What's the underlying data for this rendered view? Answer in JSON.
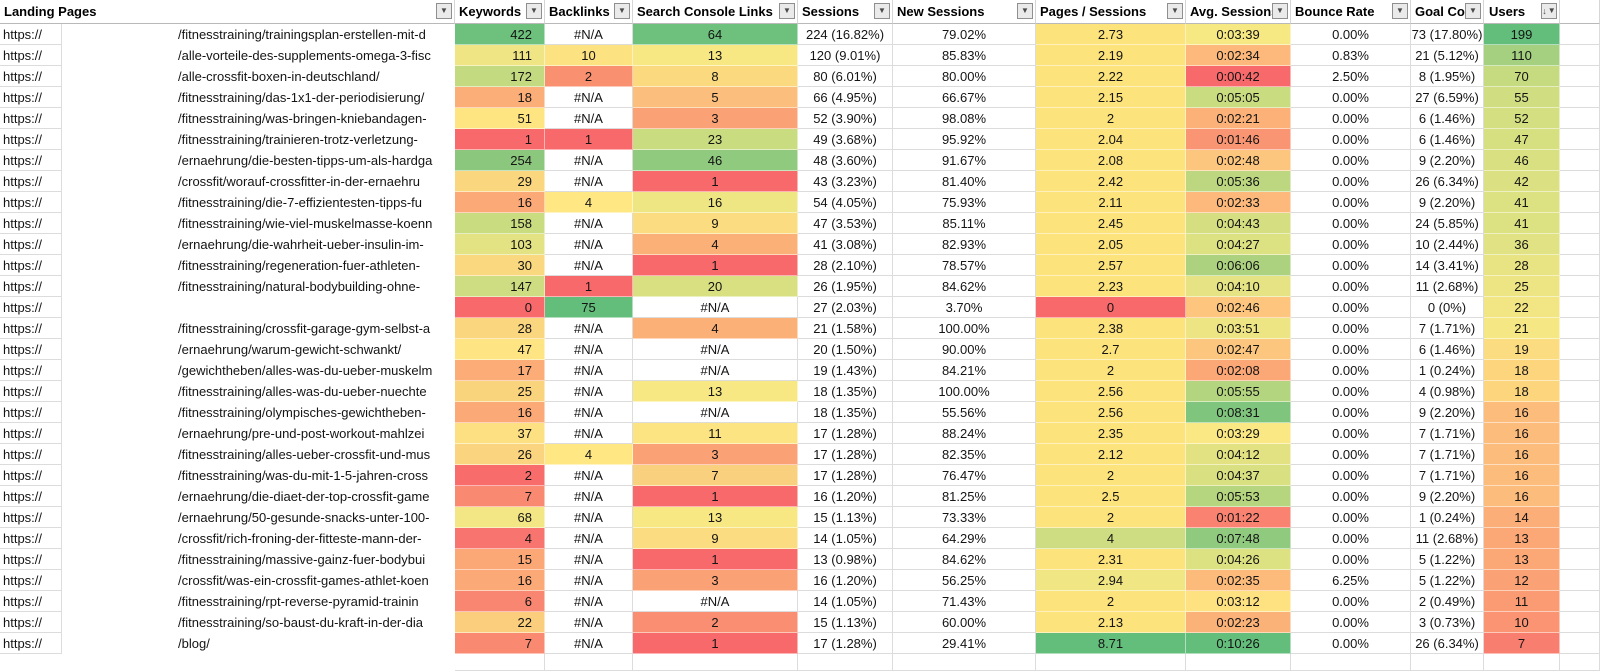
{
  "header": {
    "columns": [
      "Landing Pages",
      "Keywords",
      "Backlinks",
      "Search Console Links",
      "Sessions",
      "New Sessions",
      "Pages / Sessions",
      "Avg. Sessions",
      "Bounce Rate",
      "Goal Co",
      "Users"
    ]
  },
  "icons": {
    "filter_dropdown": "▼",
    "sort_descending": "↓"
  },
  "protocol": "https://",
  "na": "#N/A",
  "rows": [
    {
      "p": "/fitnesstraining/trainingsplan-erstellen-mit-d",
      "kw": "422",
      "kwc": "#6EC17C",
      "bl": "#N/A",
      "blc": "",
      "scl": "64",
      "sclc": "#6EC17C",
      "se": "224 (16.82%)",
      "ns": "79.02%",
      "pp": "2.73",
      "ppc": "#FDE37C",
      "av": "0:03:39",
      "avc": "#F6E883",
      "br": "0.00%",
      "gc": "73 (17.80%)",
      "us": "199",
      "usc": "#63BE7B"
    },
    {
      "p": "/alle-vorteile-des-supplements-omega-3-fisc",
      "kw": "111",
      "kwc": "#EFE584",
      "bl": "10",
      "blc": "#FDE281",
      "scl": "13",
      "sclc": "#F8E883",
      "se": "120 (9.01%)",
      "ns": "85.83%",
      "pp": "2.19",
      "ppc": "#FDE37C",
      "av": "0:02:34",
      "avc": "#FCB97B",
      "br": "0.83%",
      "gc": "21 (5.12%)",
      "us": "110",
      "usc": "#A4D07F"
    },
    {
      "p": "/alle-crossfit-boxen-in-deutschland/",
      "kw": "172",
      "kwc": "#C4DA80",
      "bl": "2",
      "blc": "#F9906F",
      "scl": "8",
      "sclc": "#FAD97F",
      "se": "80 (6.01%)",
      "ns": "80.00%",
      "pp": "2.22",
      "ppc": "#FDE37C",
      "av": "0:00:42",
      "avc": "#F8696B",
      "br": "2.50%",
      "gc": "8 (1.95%)",
      "us": "70",
      "usc": "#C6DB80"
    },
    {
      "p": "/fitnesstraining/das-1x1-der-periodisierung/",
      "kw": "18",
      "kwc": "#FBAE78",
      "bl": "#N/A",
      "blc": "",
      "scl": "5",
      "sclc": "#FCBE7C",
      "se": "66 (4.95%)",
      "ns": "66.67%",
      "pp": "2.15",
      "ppc": "#FDE37C",
      "av": "0:05:05",
      "avc": "#CADC80",
      "br": "0.00%",
      "gc": "27 (6.59%)",
      "us": "55",
      "usc": "#D0DE81"
    },
    {
      "p": "/fitnesstraining/was-bringen-kniebandagen-",
      "kw": "51",
      "kwc": "#FEE582",
      "bl": "#N/A",
      "blc": "",
      "scl": "3",
      "sclc": "#FAA276",
      "se": "52 (3.90%)",
      "ns": "98.08%",
      "pp": "2",
      "ppc": "#FDE37C",
      "av": "0:02:21",
      "avc": "#FBB178",
      "br": "0.00%",
      "gc": "6 (1.46%)",
      "us": "52",
      "usc": "#D3DF81"
    },
    {
      "p": "/fitnesstraining/trainieren-trotz-verletzung-",
      "kw": "1",
      "kwc": "#F8696B",
      "bl": "1",
      "blc": "#F8696B",
      "scl": "23",
      "sclc": "#CADC80",
      "se": "49 (3.68%)",
      "ns": "95.92%",
      "pp": "2.04",
      "ppc": "#FDE37C",
      "av": "0:01:46",
      "avc": "#FA9573",
      "br": "0.00%",
      "gc": "6 (1.46%)",
      "us": "47",
      "usc": "#D7E081"
    },
    {
      "p": "/ernaehrung/die-besten-tipps-um-als-hardga",
      "kw": "254",
      "kwc": "#8BC87E",
      "bl": "#N/A",
      "blc": "",
      "scl": "46",
      "sclc": "#90CA7E",
      "se": "48 (3.60%)",
      "ns": "91.67%",
      "pp": "2.08",
      "ppc": "#FDE37C",
      "av": "0:02:48",
      "avc": "#FDC67E",
      "br": "0.00%",
      "gc": "9 (2.20%)",
      "us": "46",
      "usc": "#D8E081"
    },
    {
      "p": "/crossfit/worauf-crossfitter-in-der-ernaehru",
      "kw": "29",
      "kwc": "#FAD77E",
      "bl": "#N/A",
      "blc": "",
      "scl": "1",
      "sclc": "#F8696B",
      "se": "43 (3.23%)",
      "ns": "81.40%",
      "pp": "2.42",
      "ppc": "#FDE37C",
      "av": "0:05:36",
      "avc": "#BCD780",
      "br": "0.00%",
      "gc": "26 (6.34%)",
      "us": "42",
      "usc": "#DBE182"
    },
    {
      "p": "/fitnesstraining/die-7-effizientesten-tipps-fu",
      "kw": "16",
      "kwc": "#FBA976",
      "bl": "4",
      "blc": "#FFE884",
      "scl": "16",
      "sclc": "#EEE583",
      "se": "54 (4.05%)",
      "ns": "75.93%",
      "pp": "2.11",
      "ppc": "#FDE37C",
      "av": "0:02:33",
      "avc": "#FCB97B",
      "br": "0.00%",
      "gc": "9 (2.20%)",
      "us": "41",
      "usc": "#DCE182"
    },
    {
      "p": "/fitnesstraining/wie-viel-muskelmasse-koenn",
      "kw": "158",
      "kwc": "#CADC80",
      "bl": "#N/A",
      "blc": "",
      "scl": "9",
      "sclc": "#FBDC80",
      "se": "47 (3.53%)",
      "ns": "85.11%",
      "pp": "2.45",
      "ppc": "#FDE37C",
      "av": "0:04:43",
      "avc": "#D5DF81",
      "br": "0.00%",
      "gc": "24 (5.85%)",
      "us": "41",
      "usc": "#DCE182"
    },
    {
      "p": "/ernaehrung/die-wahrheit-ueber-insulin-im-",
      "kw": "103",
      "kwc": "#E4E383",
      "bl": "#N/A",
      "blc": "",
      "scl": "4",
      "sclc": "#FBB078",
      "se": "41 (3.08%)",
      "ns": "82.93%",
      "pp": "2.05",
      "ppc": "#FDE37C",
      "av": "0:04:27",
      "avc": "#DCE182",
      "br": "0.00%",
      "gc": "10 (2.44%)",
      "us": "36",
      "usc": "#E0E283"
    },
    {
      "p": "/fitnesstraining/regeneration-fuer-athleten-",
      "kw": "30",
      "kwc": "#FAD87F",
      "bl": "#N/A",
      "blc": "",
      "scl": "1",
      "sclc": "#F8696B",
      "se": "28 (2.10%)",
      "ns": "78.57%",
      "pp": "2.57",
      "ppc": "#FDE37C",
      "av": "0:06:06",
      "avc": "#ACD27F",
      "br": "0.00%",
      "gc": "14 (3.41%)",
      "us": "28",
      "usc": "#E9E483"
    },
    {
      "p": "/fitnesstraining/natural-bodybuilding-ohne-",
      "kw": "147",
      "kwc": "#CEDD81",
      "bl": "1",
      "blc": "#F8696B",
      "scl": "20",
      "sclc": "#D9E081",
      "se": "26 (1.95%)",
      "ns": "84.62%",
      "pp": "2.23",
      "ppc": "#FDE37C",
      "av": "0:04:10",
      "avc": "#E5E383",
      "br": "0.00%",
      "gc": "11 (2.68%)",
      "us": "25",
      "usc": "#EDE584"
    },
    {
      "p": "",
      "kw": "0",
      "kwc": "#F8696B",
      "bl": "75",
      "blc": "#63BE7B",
      "scl": "#N/A",
      "sclc": "",
      "se": "27 (2.03%)",
      "ns": "3.70%",
      "pp": "0",
      "ppc": "#F8696B",
      "av": "0:02:46",
      "avc": "#FDC57D",
      "br": "0.00%",
      "gc": "0 (0%)",
      "us": "22",
      "usc": "#F2E684"
    },
    {
      "p": "/fitnesstraining/crossfit-garage-gym-selbst-a",
      "kw": "28",
      "kwc": "#FAD67E",
      "bl": "#N/A",
      "blc": "",
      "scl": "4",
      "sclc": "#FBB078",
      "se": "21 (1.58%)",
      "ns": "100.00%",
      "pp": "2.38",
      "ppc": "#FDE37C",
      "av": "0:03:51",
      "avc": "#EDE583",
      "br": "0.00%",
      "gc": "7 (1.71%)",
      "us": "21",
      "usc": "#F4E784"
    },
    {
      "p": "/ernaehrung/warum-gewicht-schwankt/",
      "kw": "47",
      "kwc": "#FEE482",
      "bl": "#N/A",
      "blc": "",
      "scl": "#N/A",
      "sclc": "",
      "se": "20 (1.50%)",
      "ns": "90.00%",
      "pp": "2.7",
      "ppc": "#FDE37C",
      "av": "0:02:47",
      "avc": "#FDC67E",
      "br": "0.00%",
      "gc": "6 (1.46%)",
      "us": "19",
      "usc": "#FBDC80"
    },
    {
      "p": "/gewichtheben/alles-was-du-ueber-muskelm",
      "kw": "17",
      "kwc": "#FBAC77",
      "bl": "#N/A",
      "blc": "",
      "scl": "#N/A",
      "sclc": "",
      "se": "19 (1.43%)",
      "ns": "84.21%",
      "pp": "2",
      "ppc": "#FDE37C",
      "av": "0:02:08",
      "avc": "#FBA776",
      "br": "0.00%",
      "gc": "1 (0.24%)",
      "us": "18",
      "usc": "#FCD57D"
    },
    {
      "p": "/fitnesstraining/alles-was-du-ueber-nuechte",
      "kw": "25",
      "kwc": "#FAD37D",
      "bl": "#N/A",
      "blc": "",
      "scl": "13",
      "sclc": "#F8E883",
      "se": "18 (1.35%)",
      "ns": "100.00%",
      "pp": "2.56",
      "ppc": "#FDE37C",
      "av": "0:05:55",
      "avc": "#B4D57F",
      "br": "0.00%",
      "gc": "4 (0.98%)",
      "us": "18",
      "usc": "#FCD57D"
    },
    {
      "p": "/fitnesstraining/olympisches-gewichtheben-",
      "kw": "16",
      "kwc": "#FBA976",
      "bl": "#N/A",
      "blc": "",
      "scl": "#N/A",
      "sclc": "",
      "se": "18 (1.35%)",
      "ns": "55.56%",
      "pp": "2.56",
      "ppc": "#FDE37C",
      "av": "0:08:31",
      "avc": "#80C57D",
      "br": "0.00%",
      "gc": "9 (2.20%)",
      "us": "16",
      "usc": "#FCBC7C"
    },
    {
      "p": "/ernaehrung/pre-und-post-workout-mahlzei",
      "kw": "37",
      "kwc": "#FDE081",
      "bl": "#N/A",
      "blc": "",
      "scl": "11",
      "sclc": "#FCE482",
      "se": "17 (1.28%)",
      "ns": "88.24%",
      "pp": "2.35",
      "ppc": "#FDE37C",
      "av": "0:03:29",
      "avc": "#F9E884",
      "br": "0.00%",
      "gc": "7 (1.71%)",
      "us": "16",
      "usc": "#FCBC7C"
    },
    {
      "p": "/fitnesstraining/alles-ueber-crossfit-und-mus",
      "kw": "26",
      "kwc": "#FAD47E",
      "bl": "4",
      "blc": "#FFE884",
      "scl": "3",
      "sclc": "#FAA276",
      "se": "17 (1.28%)",
      "ns": "82.35%",
      "pp": "2.12",
      "ppc": "#FDE37C",
      "av": "0:04:12",
      "avc": "#E3E283",
      "br": "0.00%",
      "gc": "7 (1.71%)",
      "us": "16",
      "usc": "#FCBC7C"
    },
    {
      "p": "/fitnesstraining/was-du-mit-1-5-jahren-cross",
      "kw": "2",
      "kwc": "#F86D6C",
      "bl": "#N/A",
      "blc": "",
      "scl": "7",
      "sclc": "#F9D07D",
      "se": "17 (1.28%)",
      "ns": "76.47%",
      "pp": "2",
      "ppc": "#FDE37C",
      "av": "0:04:37",
      "avc": "#D8E081",
      "br": "0.00%",
      "gc": "7 (1.71%)",
      "us": "16",
      "usc": "#FCBC7C"
    },
    {
      "p": "/ernaehrung/die-diaet-der-top-crossfit-game",
      "kw": "7",
      "kwc": "#F98A71",
      "bl": "#N/A",
      "blc": "",
      "scl": "1",
      "sclc": "#F8696B",
      "se": "16 (1.20%)",
      "ns": "81.25%",
      "pp": "2.5",
      "ppc": "#FDE37C",
      "av": "0:05:53",
      "avc": "#B5D57F",
      "br": "0.00%",
      "gc": "9 (2.20%)",
      "us": "16",
      "usc": "#FCBC7C"
    },
    {
      "p": "/ernaehrung/50-gesunde-snacks-unter-100-",
      "kw": "68",
      "kwc": "#F2E784",
      "bl": "#N/A",
      "blc": "",
      "scl": "13",
      "sclc": "#F8E883",
      "se": "15 (1.13%)",
      "ns": "73.33%",
      "pp": "2",
      "ppc": "#FDE37C",
      "av": "0:01:22",
      "avc": "#F98270",
      "br": "0.00%",
      "gc": "1 (0.24%)",
      "us": "14",
      "usc": "#FBAE78"
    },
    {
      "p": "/crossfit/rich-froning-der-fitteste-mann-der-",
      "kw": "4",
      "kwc": "#F8746E",
      "bl": "#N/A",
      "blc": "",
      "scl": "9",
      "sclc": "#FBDC80",
      "se": "14 (1.05%)",
      "ns": "64.29%",
      "pp": "4",
      "ppc": "#CEDD81",
      "av": "0:07:48",
      "avc": "#90CA7E",
      "br": "0.00%",
      "gc": "11 (2.68%)",
      "us": "13",
      "usc": "#FBA876"
    },
    {
      "p": "/fitnesstraining/massive-gainz-fuer-bodybui",
      "kw": "15",
      "kwc": "#FBA776",
      "bl": "#N/A",
      "blc": "",
      "scl": "1",
      "sclc": "#F8696B",
      "se": "13 (0.98%)",
      "ns": "84.62%",
      "pp": "2.31",
      "ppc": "#FDE37C",
      "av": "0:04:26",
      "avc": "#DCE182",
      "br": "0.00%",
      "gc": "5 (1.22%)",
      "us": "13",
      "usc": "#FBA876"
    },
    {
      "p": "/crossfit/was-ein-crossfit-games-athlet-koen",
      "kw": "16",
      "kwc": "#FBA976",
      "bl": "#N/A",
      "blc": "",
      "scl": "3",
      "sclc": "#FAA276",
      "se": "16 (1.20%)",
      "ns": "56.25%",
      "pp": "2.94",
      "ppc": "#F0E684",
      "av": "0:02:35",
      "avc": "#FCBB7B",
      "br": "6.25%",
      "gc": "5 (1.22%)",
      "us": "12",
      "usc": "#FAA175"
    },
    {
      "p": "/fitnesstraining/rpt-reverse-pyramid-trainin",
      "kw": "6",
      "kwc": "#F98670",
      "bl": "#N/A",
      "blc": "",
      "scl": "#N/A",
      "sclc": "",
      "se": "14 (1.05%)",
      "ns": "71.43%",
      "pp": "2",
      "ppc": "#FDE37C",
      "av": "0:03:12",
      "avc": "#FEE282",
      "br": "0.00%",
      "gc": "2 (0.49%)",
      "us": "11",
      "usc": "#FA9B74"
    },
    {
      "p": "/fitnesstraining/so-baust-du-kraft-in-der-dia",
      "kw": "22",
      "kwc": "#FACE7C",
      "bl": "#N/A",
      "blc": "",
      "scl": "2",
      "sclc": "#F98E72",
      "se": "15 (1.13%)",
      "ns": "60.00%",
      "pp": "2.13",
      "ppc": "#FDE37C",
      "av": "0:02:23",
      "avc": "#FBB279",
      "br": "0.00%",
      "gc": "3 (0.73%)",
      "us": "10",
      "usc": "#FA9473"
    },
    {
      "p": "/blog/",
      "kw": "7",
      "kwc": "#F98A71",
      "bl": "#N/A",
      "blc": "",
      "scl": "1",
      "sclc": "#F8696B",
      "se": "17 (1.28%)",
      "ns": "29.41%",
      "pp": "8.71",
      "ppc": "#63BE7B",
      "av": "0:10:26",
      "avc": "#63BE7B",
      "br": "0.00%",
      "gc": "26 (6.34%)",
      "us": "7",
      "usc": "#F87E70"
    }
  ]
}
